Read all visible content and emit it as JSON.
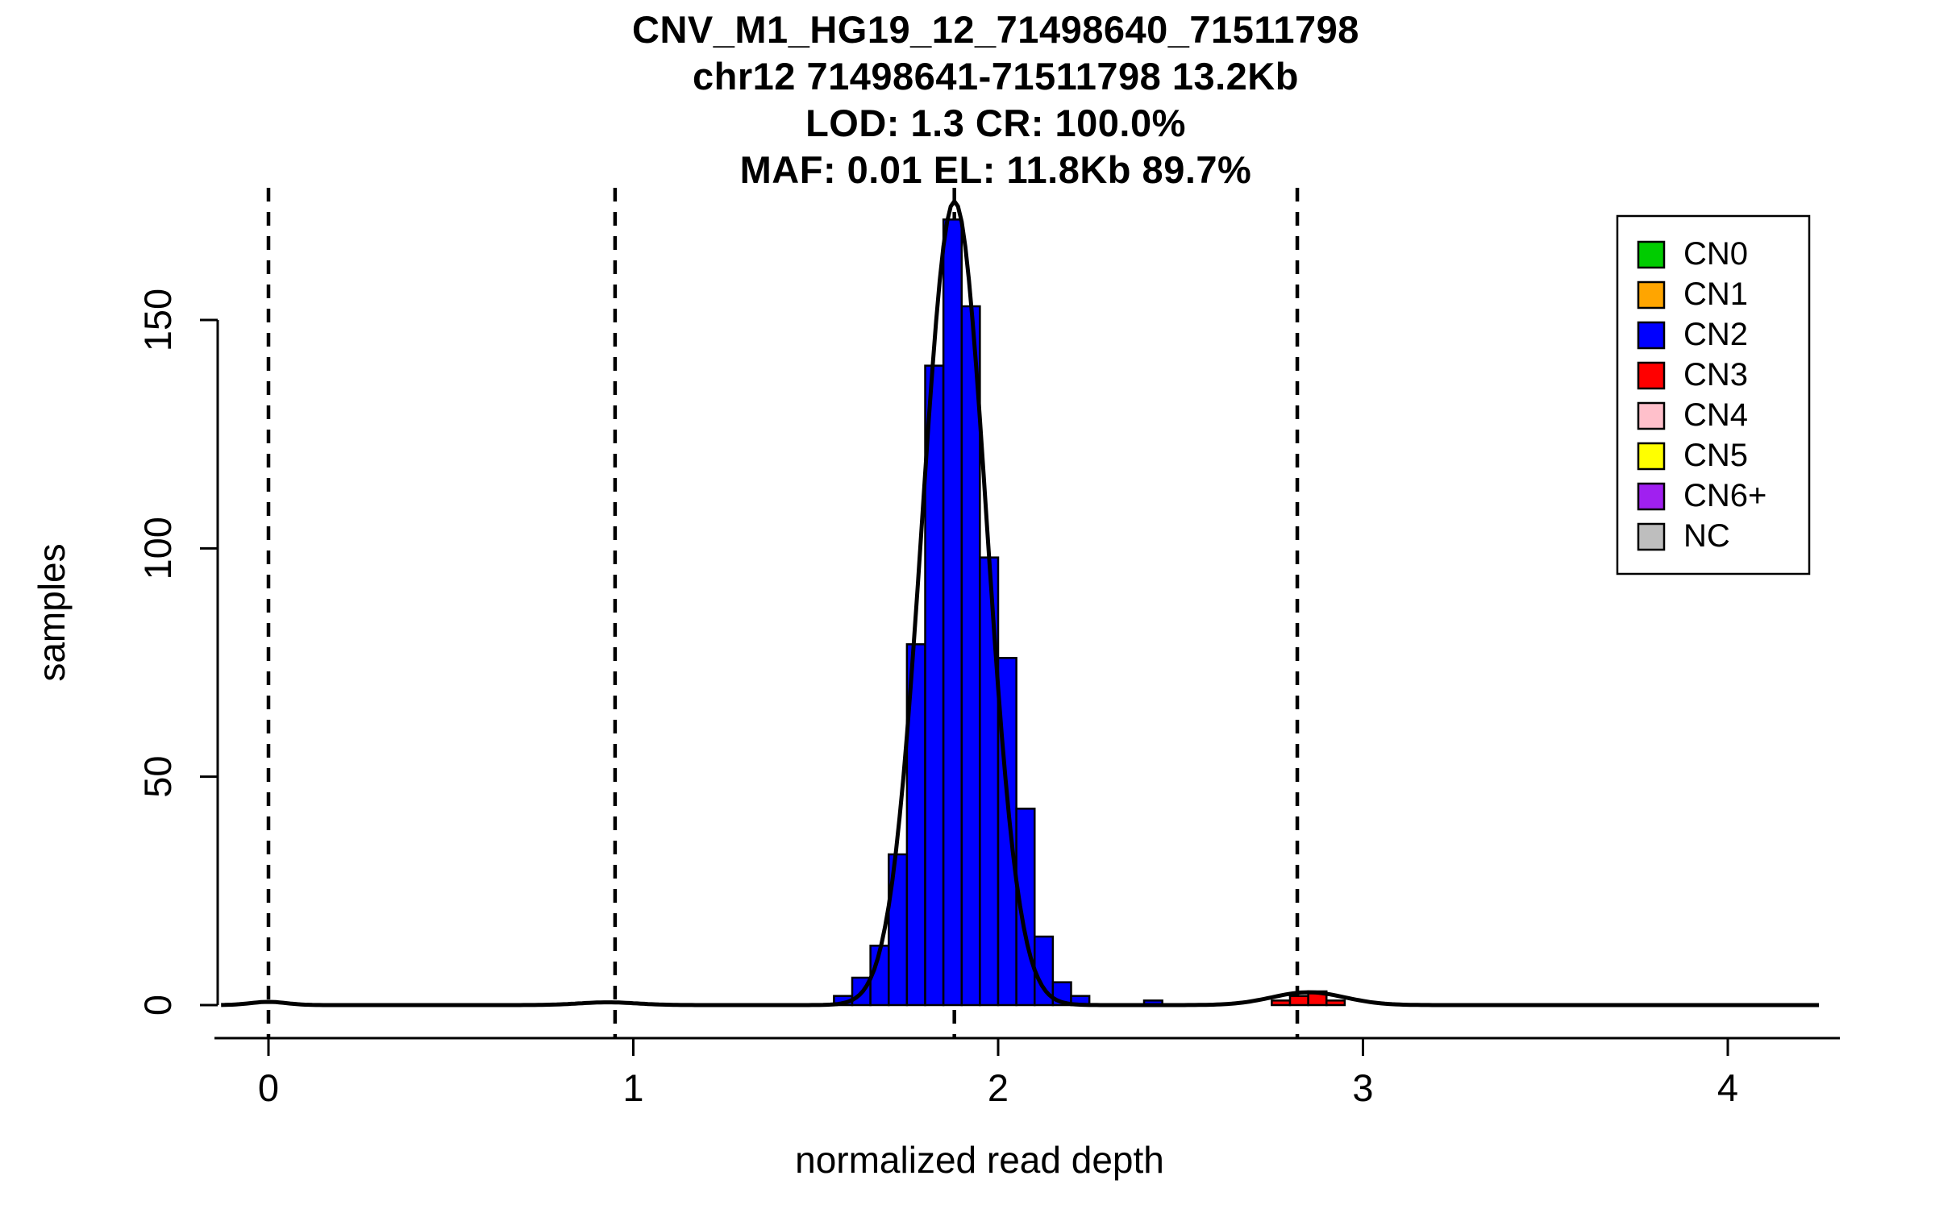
{
  "chart_data": {
    "type": "histogram",
    "title_lines": [
      "CNV_M1_HG19_12_71498640_71511798",
      "chr12 71498641-71511798 13.2Kb",
      "LOD: 1.3 CR: 100.0%",
      "MAF: 0.01 EL: 11.8Kb 89.7%"
    ],
    "xlabel": "normalized read depth",
    "ylabel": "samples",
    "xlim": [
      -0.15,
      4.3
    ],
    "ylim": [
      0,
      178
    ],
    "x_ticks": [
      0,
      1,
      2,
      3,
      4
    ],
    "y_ticks": [
      0,
      50,
      100,
      150
    ],
    "grid": false,
    "bin_width": 0.05,
    "bars": [
      {
        "x": 1.55,
        "h": 2,
        "cn": "CN2"
      },
      {
        "x": 1.6,
        "h": 6,
        "cn": "CN2"
      },
      {
        "x": 1.65,
        "h": 13,
        "cn": "CN2"
      },
      {
        "x": 1.7,
        "h": 33,
        "cn": "CN2"
      },
      {
        "x": 1.75,
        "h": 79,
        "cn": "CN2"
      },
      {
        "x": 1.8,
        "h": 140,
        "cn": "CN2"
      },
      {
        "x": 1.85,
        "h": 172,
        "cn": "CN2"
      },
      {
        "x": 1.9,
        "h": 153,
        "cn": "CN2"
      },
      {
        "x": 1.95,
        "h": 98,
        "cn": "CN2"
      },
      {
        "x": 2.0,
        "h": 76,
        "cn": "CN2"
      },
      {
        "x": 2.05,
        "h": 43,
        "cn": "CN2"
      },
      {
        "x": 2.1,
        "h": 15,
        "cn": "CN2"
      },
      {
        "x": 2.15,
        "h": 5,
        "cn": "CN2"
      },
      {
        "x": 2.2,
        "h": 2,
        "cn": "CN2"
      },
      {
        "x": 2.4,
        "h": 1,
        "cn": "CN2"
      },
      {
        "x": 2.75,
        "h": 1,
        "cn": "CN3"
      },
      {
        "x": 2.8,
        "h": 2,
        "cn": "CN3"
      },
      {
        "x": 2.85,
        "h": 3,
        "cn": "CN3"
      },
      {
        "x": 2.9,
        "h": 1,
        "cn": "CN3"
      }
    ],
    "dashed_lines_x": [
      0.0,
      0.95,
      1.88,
      2.82
    ],
    "density_components": [
      {
        "mean": 1.88,
        "sd": 0.088,
        "peak": 176
      },
      {
        "mean": 2.85,
        "sd": 0.1,
        "peak": 2.8
      },
      {
        "mean": 0.0,
        "sd": 0.05,
        "peak": 0.7
      },
      {
        "mean": 0.93,
        "sd": 0.08,
        "peak": 0.6
      }
    ],
    "legend": {
      "position": "top-right",
      "entries": [
        {
          "label": "CN0",
          "color": "#00CC00"
        },
        {
          "label": "CN1",
          "color": "#FFA500"
        },
        {
          "label": "CN2",
          "color": "#0000FF"
        },
        {
          "label": "CN3",
          "color": "#FF0000"
        },
        {
          "label": "CN4",
          "color": "#FFC0CB"
        },
        {
          "label": "CN5",
          "color": "#FFFF00"
        },
        {
          "label": "CN6+",
          "color": "#A020F0"
        },
        {
          "label": "NC",
          "color": "#BEBEBE"
        }
      ]
    },
    "colors": {
      "CN2": "#0000FF",
      "CN3": "#FF0000",
      "curve": "#000000",
      "axis": "#000000",
      "background": "#FFFFFF"
    }
  }
}
